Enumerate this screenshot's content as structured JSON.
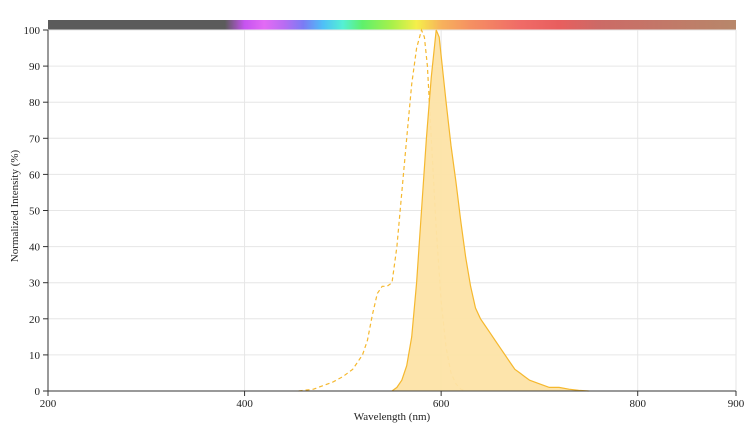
{
  "chart_data": {
    "type": "area",
    "title": "",
    "xlabel": "Wavelength (nm)",
    "ylabel": "Normalized Intensity (%)",
    "xlim": [
      200,
      900
    ],
    "ylim": [
      0,
      100
    ],
    "x_ticks": [
      "200",
      "400",
      "600",
      "800",
      "900"
    ],
    "y_ticks": [
      "0",
      "10",
      "20",
      "30",
      "40",
      "50",
      "60",
      "70",
      "80",
      "90",
      "100"
    ],
    "grid": true,
    "legend": "none",
    "spectrum_bar": {
      "stops": [
        {
          "x": 200,
          "color": "#5b5b5b"
        },
        {
          "x": 380,
          "color": "#5b5b5b"
        },
        {
          "x": 400,
          "color": "#c653f0"
        },
        {
          "x": 420,
          "color": "#e36bf5"
        },
        {
          "x": 440,
          "color": "#b96cf2"
        },
        {
          "x": 460,
          "color": "#7a7cf4"
        },
        {
          "x": 480,
          "color": "#4ec0f7"
        },
        {
          "x": 500,
          "color": "#55f0d4"
        },
        {
          "x": 520,
          "color": "#5ff06b"
        },
        {
          "x": 550,
          "color": "#a8f04a"
        },
        {
          "x": 575,
          "color": "#f5ef4a"
        },
        {
          "x": 600,
          "color": "#f7b25c"
        },
        {
          "x": 630,
          "color": "#f59062"
        },
        {
          "x": 680,
          "color": "#f06b67"
        },
        {
          "x": 720,
          "color": "#e85e5e"
        },
        {
          "x": 760,
          "color": "#cc6a66"
        },
        {
          "x": 900,
          "color": "#b7876a"
        }
      ]
    },
    "series": [
      {
        "kind": "excitation",
        "style": "dashed",
        "color": "#f5b82e",
        "points": [
          [
            455,
            0
          ],
          [
            470,
            0.5
          ],
          [
            480,
            1.5
          ],
          [
            490,
            2.5
          ],
          [
            500,
            4
          ],
          [
            510,
            6
          ],
          [
            520,
            10
          ],
          [
            525,
            14
          ],
          [
            530,
            21
          ],
          [
            535,
            27
          ],
          [
            540,
            29
          ],
          [
            545,
            29
          ],
          [
            550,
            30
          ],
          [
            555,
            40
          ],
          [
            560,
            55
          ],
          [
            565,
            70
          ],
          [
            570,
            85
          ],
          [
            575,
            95
          ],
          [
            580,
            100
          ],
          [
            583,
            98
          ],
          [
            586,
            90
          ],
          [
            590,
            70
          ],
          [
            595,
            45
          ],
          [
            600,
            25
          ],
          [
            605,
            12
          ],
          [
            610,
            5
          ],
          [
            615,
            2
          ],
          [
            620,
            0.5
          ],
          [
            625,
            0
          ]
        ]
      },
      {
        "kind": "emission",
        "style": "filled",
        "color": "#f5b82e",
        "fill": "#fde3a7",
        "points": [
          [
            550,
            0
          ],
          [
            555,
            1
          ],
          [
            560,
            3
          ],
          [
            565,
            7
          ],
          [
            570,
            15
          ],
          [
            575,
            30
          ],
          [
            580,
            50
          ],
          [
            585,
            70
          ],
          [
            590,
            87
          ],
          [
            595,
            100
          ],
          [
            598,
            98
          ],
          [
            600,
            93
          ],
          [
            605,
            80
          ],
          [
            610,
            68
          ],
          [
            615,
            58
          ],
          [
            620,
            47
          ],
          [
            625,
            37
          ],
          [
            630,
            29
          ],
          [
            635,
            23
          ],
          [
            640,
            20
          ],
          [
            645,
            18
          ],
          [
            650,
            16
          ],
          [
            655,
            14
          ],
          [
            660,
            12
          ],
          [
            665,
            10
          ],
          [
            670,
            8
          ],
          [
            675,
            6
          ],
          [
            680,
            5
          ],
          [
            685,
            4
          ],
          [
            690,
            3
          ],
          [
            700,
            2
          ],
          [
            710,
            1
          ],
          [
            720,
            1
          ],
          [
            730,
            0.5
          ],
          [
            740,
            0.2
          ],
          [
            750,
            0
          ]
        ]
      }
    ]
  }
}
